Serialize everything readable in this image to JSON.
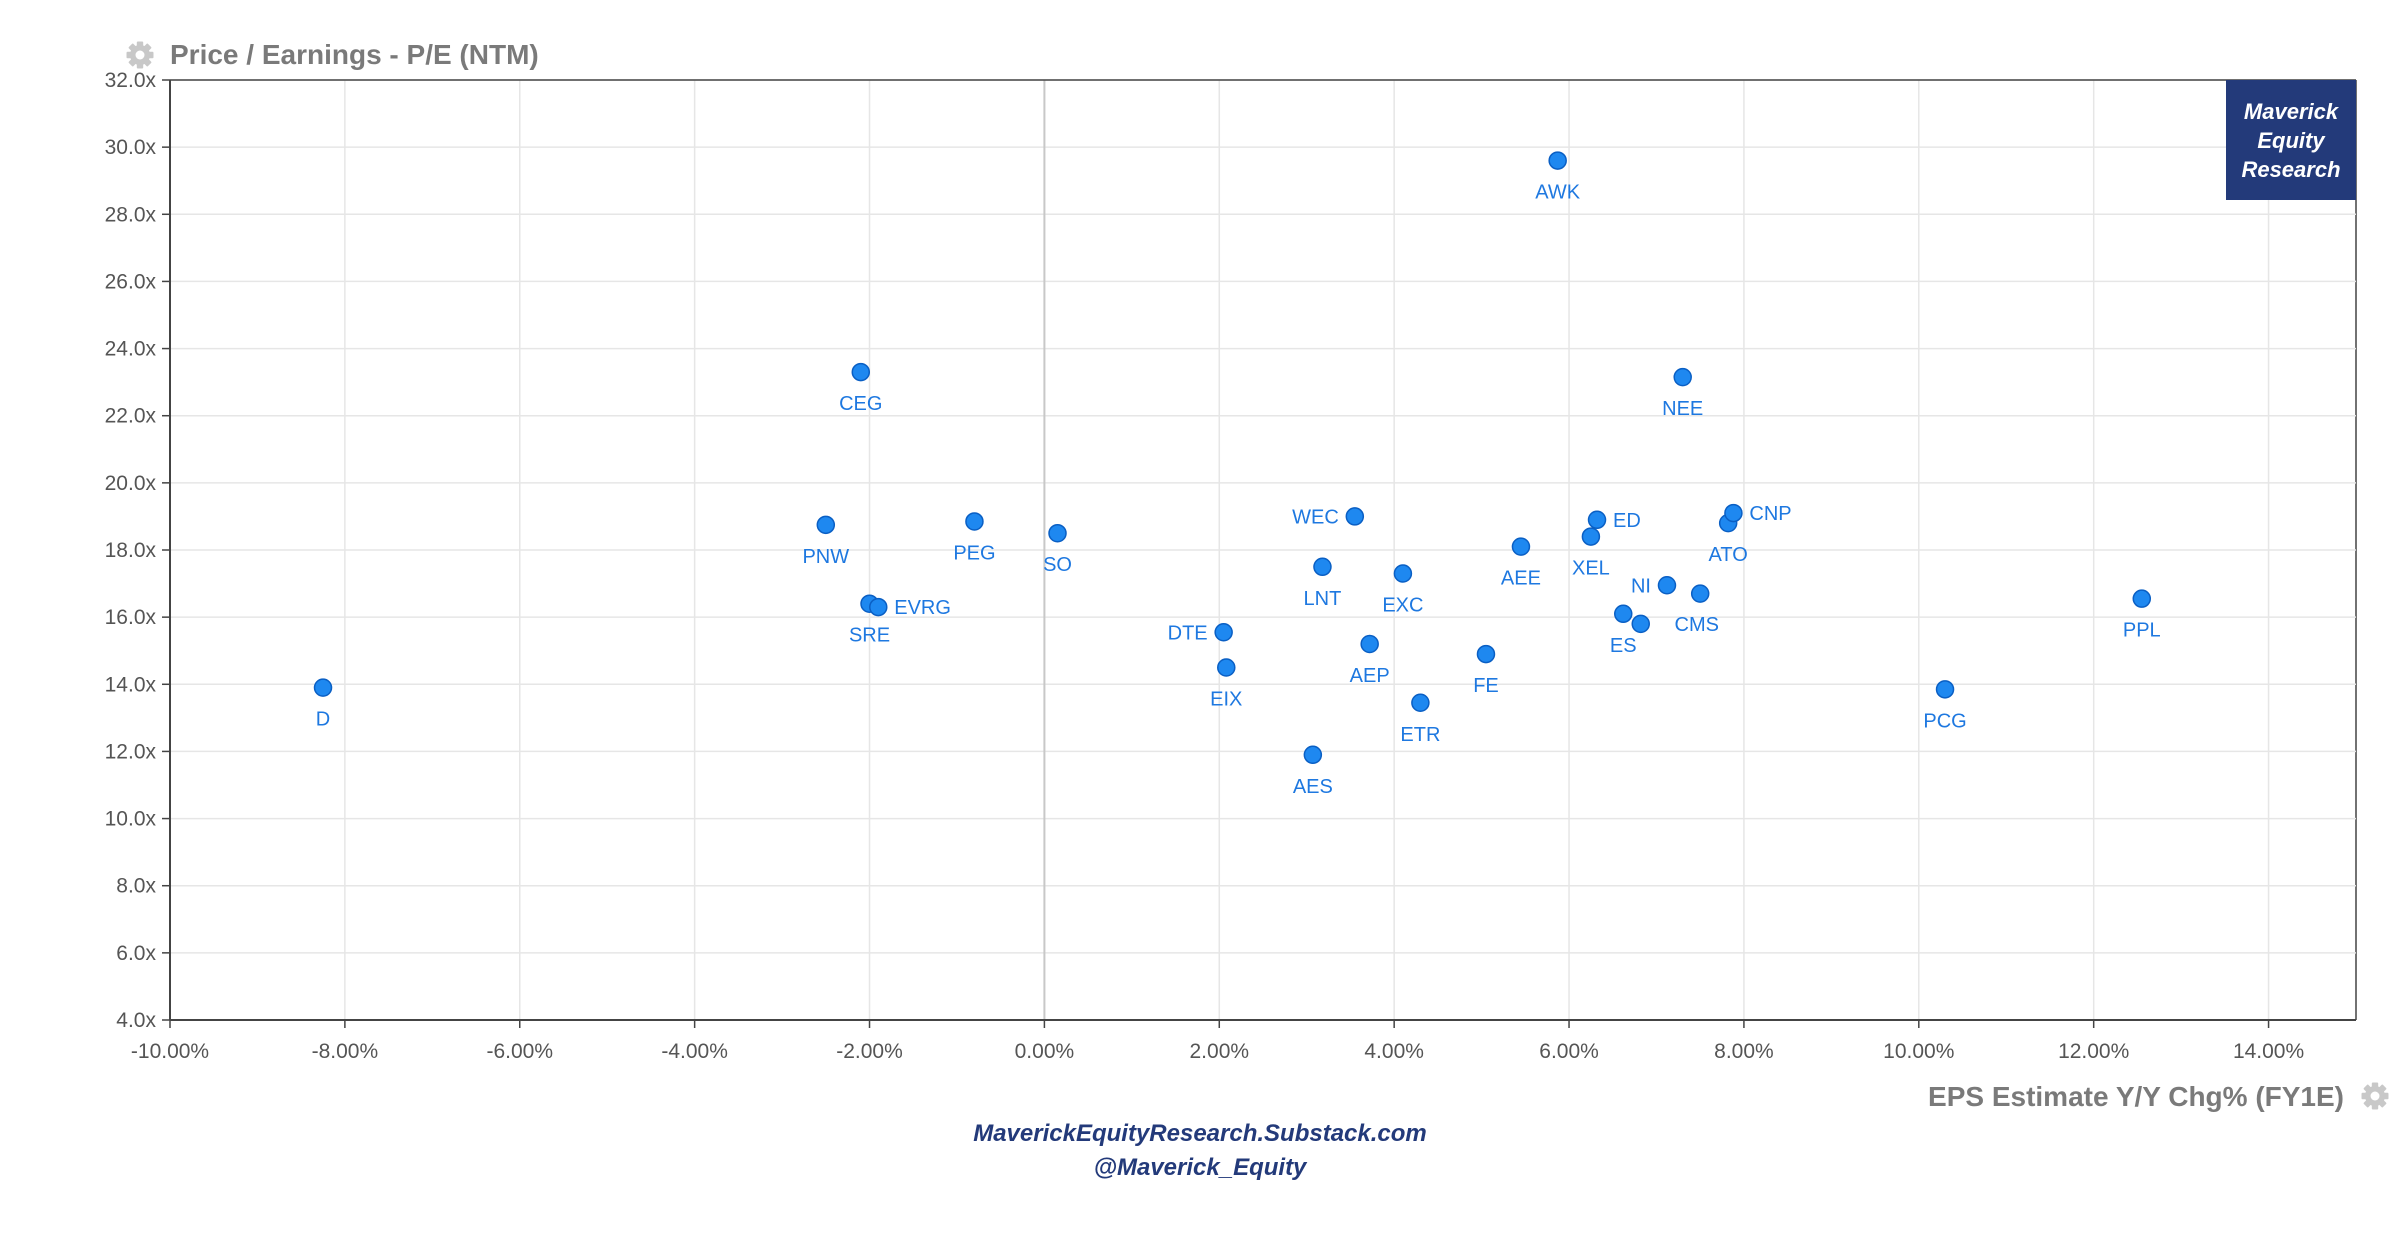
{
  "chart_data": {
    "type": "scatter",
    "title": "Price / Earnings - P/E (NTM)",
    "xlabel": "EPS Estimate Y/Y Chg% (FY1E)",
    "ylabel": "Price / Earnings - P/E (NTM)",
    "xlim": [
      -10,
      15
    ],
    "ylim": [
      4,
      32
    ],
    "x_ticks": [
      "-10.00%",
      "-8.00%",
      "-6.00%",
      "-4.00%",
      "-2.00%",
      "0.00%",
      "2.00%",
      "4.00%",
      "6.00%",
      "8.00%",
      "10.00%",
      "12.00%",
      "14.00%"
    ],
    "y_ticks": [
      "4.0x",
      "6.0x",
      "8.0x",
      "10.0x",
      "12.0x",
      "14.0x",
      "16.0x",
      "18.0x",
      "20.0x",
      "22.0x",
      "24.0x",
      "26.0x",
      "28.0x",
      "30.0x",
      "32.0x"
    ],
    "grid": true,
    "point_color": "#1e88f0",
    "points": [
      {
        "label": "D",
        "x": -8.25,
        "y": 13.9,
        "pos": "below"
      },
      {
        "label": "CEG",
        "x": -2.1,
        "y": 23.3,
        "pos": "below"
      },
      {
        "label": "PNW",
        "x": -2.5,
        "y": 18.75,
        "pos": "below"
      },
      {
        "label": "SRE",
        "x": -2.0,
        "y": 16.4,
        "pos": "below"
      },
      {
        "label": "EVRG",
        "x": -1.9,
        "y": 16.3,
        "pos": "right"
      },
      {
        "label": "PEG",
        "x": -0.8,
        "y": 18.85,
        "pos": "below"
      },
      {
        "label": "SO",
        "x": 0.15,
        "y": 18.5,
        "pos": "below"
      },
      {
        "label": "DTE",
        "x": 2.05,
        "y": 15.55,
        "pos": "left"
      },
      {
        "label": "EIX",
        "x": 2.08,
        "y": 14.5,
        "pos": "below"
      },
      {
        "label": "AES",
        "x": 3.07,
        "y": 11.9,
        "pos": "below"
      },
      {
        "label": "LNT",
        "x": 3.18,
        "y": 17.5,
        "pos": "below"
      },
      {
        "label": "WEC",
        "x": 3.55,
        "y": 19.0,
        "pos": "left"
      },
      {
        "label": "AEP",
        "x": 3.72,
        "y": 15.2,
        "pos": "below"
      },
      {
        "label": "EXC",
        "x": 4.1,
        "y": 17.3,
        "pos": "below"
      },
      {
        "label": "ETR",
        "x": 4.3,
        "y": 13.45,
        "pos": "below"
      },
      {
        "label": "FE",
        "x": 5.05,
        "y": 14.9,
        "pos": "below"
      },
      {
        "label": "AEE",
        "x": 5.45,
        "y": 18.1,
        "pos": "below"
      },
      {
        "label": "AWK",
        "x": 5.87,
        "y": 29.6,
        "pos": "below"
      },
      {
        "label": "XEL",
        "x": 6.25,
        "y": 18.4,
        "pos": "below"
      },
      {
        "label": "ED",
        "x": 6.32,
        "y": 18.9,
        "pos": "right"
      },
      {
        "label": "ES",
        "x": 6.62,
        "y": 16.1,
        "pos": "below"
      },
      {
        "label": "NI",
        "x": 7.12,
        "y": 16.95,
        "pos": "left"
      },
      {
        "label": "CMS",
        "x": 6.82,
        "y": 15.8,
        "pos": "below-right"
      },
      {
        "label": "NEE",
        "x": 7.3,
        "y": 23.15,
        "pos": "below"
      },
      {
        "label": "ATO",
        "x": 7.82,
        "y": 18.8,
        "pos": "below"
      },
      {
        "label": "CNP",
        "x": 7.88,
        "y": 19.1,
        "pos": "right"
      },
      {
        "label": "PCG",
        "x": 10.3,
        "y": 13.85,
        "pos": "below"
      },
      {
        "label": "PPL",
        "x": 12.55,
        "y": 16.55,
        "pos": "below"
      },
      {
        "label": "",
        "x": 7.5,
        "y": 16.7,
        "pos": "none"
      }
    ]
  },
  "branding": {
    "box_lines": [
      "Maverick",
      "Equity",
      "Research"
    ],
    "footer_line1": "MaverickEquityResearch.Substack.com",
    "footer_line2": "@Maverick_Equity",
    "box_color": "#233a7a"
  },
  "icons": {
    "title_icon": "gear-icon",
    "xlabel_icon": "gear-icon"
  }
}
